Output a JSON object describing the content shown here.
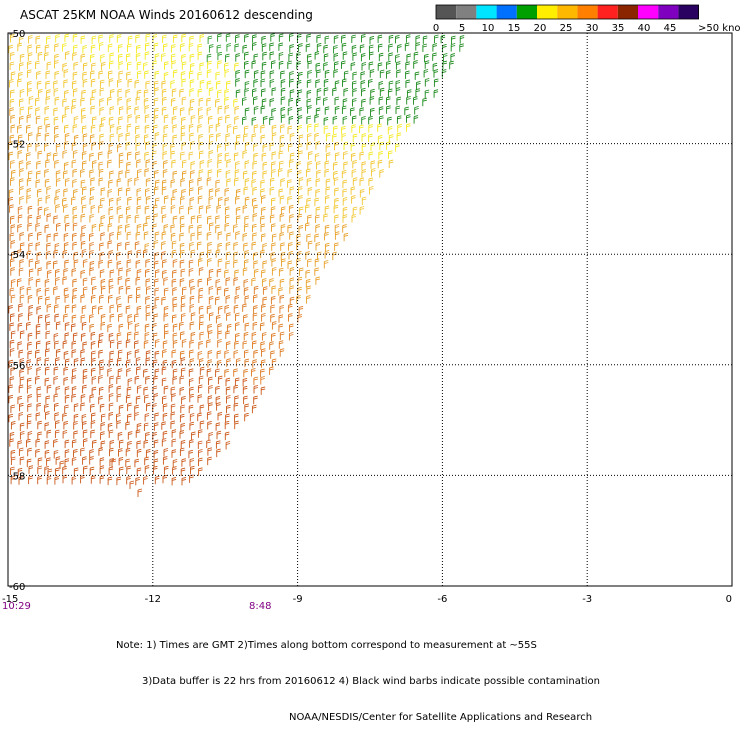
{
  "title": "ASCAT 25KM NOAA Winds 20160612 descending",
  "legend": {
    "labels": [
      "0",
      "5",
      "10",
      "15",
      "20",
      "25",
      "30",
      "35",
      "40",
      "45",
      ">50 knots"
    ],
    "colors": [
      "#555555",
      "#808080",
      "#00e5ff",
      "#0070ff",
      "#00a000",
      "#ffee00",
      "#ffb800",
      "#ff8000",
      "#ff2020",
      "#8b2500",
      "#ff00ff",
      "#8000c0",
      "#2a0060"
    ]
  },
  "axes": {
    "x_ticks": [
      "-15",
      "-12",
      "-9",
      "-6",
      "-3",
      "0"
    ],
    "y_ticks": [
      "-50",
      "-52",
      "-54",
      "-56",
      "-58",
      "-60"
    ],
    "lon_range": [
      -15,
      0
    ],
    "lat_range": [
      -60,
      -50
    ]
  },
  "time_labels": [
    "10:29",
    "8:48"
  ],
  "note": {
    "line1": "Note: 1) Times are GMT 2)Times along bottom correspond to measurement at ~55S",
    "line2": "3)Data buffer is 22 hrs from 20160612 4) Black wind barbs indicate possible contamination",
    "line3": "NOAA/NESDIS/Center for Satellite Applications and Research"
  }
}
